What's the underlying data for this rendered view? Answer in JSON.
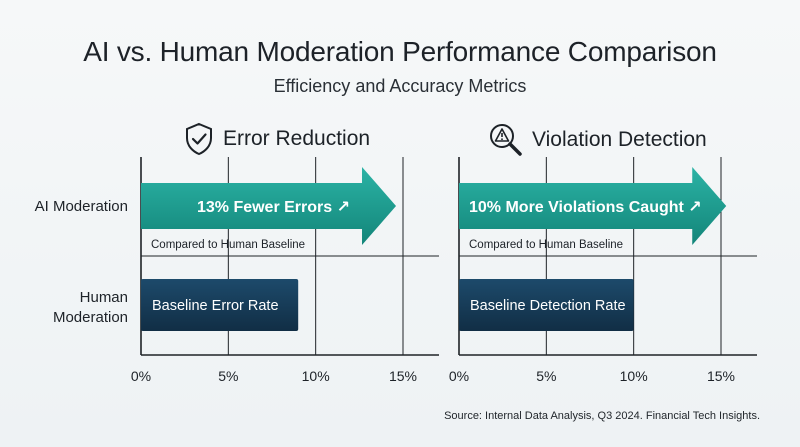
{
  "header": {
    "title": "AI vs. Human Moderation Performance Comparison",
    "subtitle": "Efficiency and Accuracy Metrics"
  },
  "rows": {
    "ai": "AI Moderation",
    "human_line1": "Human",
    "human_line2": "Moderation"
  },
  "source": "Source: Internal Data Analysis, Q3 2024. Financial Tech Insights.",
  "colors": {
    "ai_bar": "#1a9c90",
    "human_bar": "#153a55",
    "grid": "#1f2327"
  },
  "icons": {
    "error_panel": "shield-check-icon",
    "violation_panel": "magnifier-warning-icon",
    "bar_label": "arrow-up-right-icon"
  },
  "chart_data": [
    {
      "type": "bar",
      "orientation": "horizontal",
      "title": "Error Reduction",
      "categories": [
        "AI Moderation",
        "Human Moderation"
      ],
      "values": [
        14.6,
        9
      ],
      "bar_labels": [
        "13% Fewer Errors ↗",
        "Baseline Error Rate"
      ],
      "annotations": [
        "Compared to Human Baseline"
      ],
      "xlim": [
        0,
        15
      ],
      "xticks": [
        "0%",
        "5%",
        "10%",
        "15%"
      ],
      "grid": true
    },
    {
      "type": "bar",
      "orientation": "horizontal",
      "title": "Violation Detection",
      "categories": [
        "AI Moderation",
        "Human Moderation"
      ],
      "values": [
        15.3,
        10
      ],
      "bar_labels": [
        "10% More Violations Caught ↗",
        "Baseline Detection Rate"
      ],
      "annotations": [
        "Compared to Human Baseline"
      ],
      "xlim": [
        0,
        15
      ],
      "xticks": [
        "0%",
        "5%",
        "10%",
        "15%"
      ],
      "grid": true
    }
  ]
}
